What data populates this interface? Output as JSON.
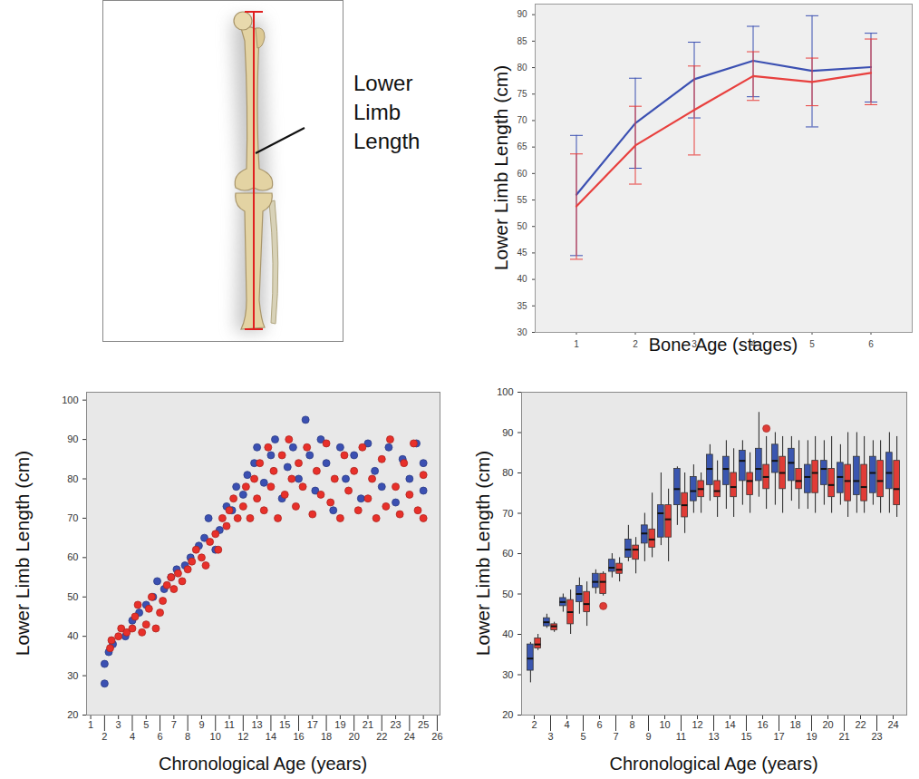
{
  "diagram": {
    "label": "Lower Limb Length"
  },
  "chart_data": [
    {
      "type": "line",
      "xlabel": "Bone Age (stages)",
      "ylabel": "Lower Limb Length (cm)",
      "x": [
        1,
        2,
        3,
        4,
        5,
        6
      ],
      "xlim": [
        0.3,
        6.7
      ],
      "xticks": [
        1,
        2,
        3,
        4,
        5,
        6
      ],
      "ylim": [
        30,
        92
      ],
      "yticks": [
        30,
        35,
        40,
        45,
        50,
        55,
        60,
        65,
        70,
        75,
        80,
        85,
        90
      ],
      "grid": false,
      "series": [
        {
          "color": "#3b50b2",
          "values": [
            56,
            69.5,
            77.8,
            81.3,
            79.4,
            80.1
          ],
          "error_low": [
            44.5,
            61,
            70.5,
            74.5,
            68.8,
            73.5
          ],
          "error_high": [
            67.2,
            78,
            84.8,
            87.8,
            89.8,
            86.5
          ]
        },
        {
          "color": "#e8403e",
          "values": [
            53.8,
            65.3,
            72,
            78.4,
            77.3,
            79
          ],
          "error_low": [
            43.8,
            58,
            63.5,
            73.8,
            72.8,
            73
          ],
          "error_high": [
            63.7,
            72.7,
            80.3,
            83,
            81.8,
            85.4
          ]
        }
      ]
    },
    {
      "type": "scatter",
      "xlabel": "Chronological Age (years)",
      "ylabel": "Lower Limb Length (cm)",
      "xlim": [
        0.7,
        26.2
      ],
      "xticks": [
        1,
        2,
        3,
        4,
        5,
        6,
        7,
        8,
        9,
        10,
        11,
        12,
        13,
        14,
        15,
        16,
        17,
        18,
        19,
        20,
        21,
        22,
        23,
        24,
        25,
        26
      ],
      "ylim": [
        20,
        102
      ],
      "yticks": [
        20,
        30,
        40,
        50,
        60,
        70,
        80,
        90,
        100
      ],
      "grid": false,
      "series": [
        {
          "color": "#3b50b2",
          "x": [
            2,
            2,
            2.3,
            2.6,
            3.5,
            4,
            4.5,
            5,
            5.5,
            5.8,
            6.3,
            6.8,
            7.2,
            7.8,
            8.2,
            8.8,
            9.2,
            9.5,
            10,
            10.3,
            10.8,
            11.2,
            11.5,
            12,
            12.3,
            12.8,
            13,
            13.5,
            14,
            14.3,
            14.8,
            15.2,
            15.6,
            16,
            16.5,
            16.8,
            17.2,
            17.6,
            18,
            18.5,
            19,
            19.4,
            20,
            20.5,
            21,
            21.5,
            22,
            22.5,
            23,
            23.5,
            24,
            24.5,
            25,
            25
          ],
          "values": [
            33,
            28,
            36,
            38,
            40,
            44,
            46,
            48,
            50,
            54,
            52,
            55,
            57,
            58,
            60,
            63,
            65,
            70,
            62,
            67,
            73,
            72,
            78,
            76,
            81,
            84,
            88,
            79,
            86,
            90,
            75,
            83,
            88,
            80,
            95,
            86,
            77,
            90,
            84,
            72,
            88,
            80,
            86,
            75,
            89,
            82,
            78,
            88,
            74,
            85,
            80,
            89,
            77,
            84
          ]
        },
        {
          "color": "#e8302a",
          "x": [
            2.4,
            2.5,
            3,
            3.2,
            3.6,
            4,
            4.2,
            4.4,
            4.7,
            5,
            5.2,
            5.4,
            5.7,
            6,
            6.2,
            6.5,
            6.8,
            7,
            7.3,
            7.6,
            8,
            8.3,
            8.6,
            9,
            9.3,
            9.6,
            10,
            10.2,
            10.5,
            10.8,
            11,
            11.3,
            11.6,
            12,
            12.2,
            12.5,
            12.8,
            13,
            13.2,
            13.5,
            13.8,
            14,
            14.2,
            14.5,
            14.8,
            15,
            15.3,
            15.5,
            15.8,
            16,
            16.3,
            16.6,
            17,
            17.3,
            17.6,
            18,
            18.3,
            18.6,
            19,
            19.3,
            19.6,
            20,
            20.3,
            20.6,
            21,
            21.3,
            21.6,
            22,
            22.3,
            22.6,
            23,
            23.3,
            23.6,
            24,
            24.3,
            24.6,
            25,
            25
          ],
          "values": [
            37,
            39,
            40,
            42,
            41,
            42,
            45,
            48,
            41,
            43,
            47,
            50,
            42,
            46,
            49,
            53,
            55,
            52,
            56,
            54,
            57,
            59,
            62,
            60,
            58,
            64,
            66,
            62,
            70,
            68,
            72,
            75,
            70,
            73,
            78,
            70,
            80,
            75,
            84,
            72,
            88,
            78,
            82,
            70,
            86,
            76,
            90,
            80,
            73,
            84,
            78,
            88,
            71,
            82,
            76,
            89,
            74,
            80,
            70,
            86,
            77,
            82,
            72,
            88,
            75,
            80,
            70,
            85,
            73,
            90,
            78,
            71,
            84,
            76,
            89,
            72,
            81,
            70
          ]
        }
      ]
    },
    {
      "type": "box",
      "xlabel": "Chronological Age (years)",
      "ylabel": "Lower Limb Length (cm)",
      "categories": [
        2,
        3,
        4,
        5,
        6,
        7,
        8,
        9,
        10,
        11,
        12,
        13,
        14,
        15,
        16,
        17,
        18,
        19,
        20,
        21,
        22,
        23,
        24
      ],
      "ylim": [
        20,
        100
      ],
      "yticks": [
        20,
        30,
        40,
        50,
        60,
        70,
        80,
        90,
        100
      ],
      "grid": false,
      "series": [
        {
          "color": "#3a56b0",
          "min": [
            28,
            41.5,
            45.5,
            45,
            50,
            54,
            58,
            58,
            62,
            67,
            70,
            73,
            71,
            72,
            74,
            72,
            73,
            71,
            72,
            72,
            70,
            72,
            70
          ],
          "q1": [
            31,
            42,
            47,
            48,
            51.5,
            55.5,
            59,
            62.5,
            64,
            72,
            73,
            77,
            77,
            78,
            78,
            80,
            78,
            75,
            77,
            75,
            74.5,
            75,
            76
          ],
          "median": [
            34,
            43,
            48,
            50,
            53,
            56.5,
            61,
            65,
            70,
            76,
            75.5,
            81,
            81,
            83,
            81,
            83,
            82.5,
            79,
            81,
            79,
            78,
            80,
            80
          ],
          "q3": [
            37.5,
            44,
            49,
            52,
            55,
            58.5,
            63.5,
            67,
            72,
            81,
            79,
            84.5,
            84,
            85.5,
            86,
            87,
            86,
            82,
            83,
            82.5,
            84,
            84,
            85
          ],
          "max": [
            38,
            45,
            50,
            54,
            56,
            60,
            67,
            70,
            80,
            81.5,
            82,
            87,
            88,
            88,
            95,
            90,
            89,
            88,
            88,
            87,
            90,
            88,
            90
          ],
          "outliers": []
        },
        {
          "color": "#e03c36",
          "min": [
            36,
            40.5,
            40,
            42,
            49.5,
            53,
            55,
            59,
            58,
            65,
            70,
            69,
            69,
            70,
            71,
            70,
            71,
            70,
            70,
            69,
            70,
            70,
            69
          ],
          "q1": [
            36.5,
            41,
            42.5,
            45.5,
            50,
            55,
            58.5,
            61.5,
            64,
            69,
            74,
            74,
            74,
            74.5,
            76,
            76,
            76,
            75,
            74,
            73,
            73,
            74,
            72
          ],
          "median": [
            37.5,
            42,
            45.5,
            47.5,
            53,
            56,
            61,
            63.5,
            68.5,
            72,
            76,
            75.5,
            76.5,
            78,
            79,
            80,
            78,
            80,
            77,
            78,
            76.5,
            78,
            76
          ],
          "q3": [
            39,
            42.5,
            48.5,
            50.5,
            55,
            57.5,
            62,
            66,
            72,
            75,
            78,
            78,
            80,
            80,
            82,
            84,
            81,
            83,
            81,
            82,
            82,
            83,
            83
          ],
          "max": [
            40,
            43,
            51,
            53,
            55.5,
            59,
            64,
            75,
            76,
            80,
            80,
            83,
            86,
            85,
            89,
            89,
            88,
            89,
            89,
            90,
            89,
            88,
            89
          ],
          "outliers": [
            {
              "category": 6,
              "value": 47
            },
            {
              "category": 16,
              "value": 91
            }
          ]
        }
      ]
    }
  ]
}
